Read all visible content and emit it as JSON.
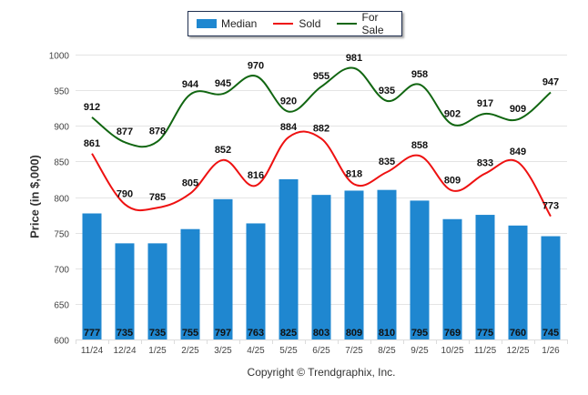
{
  "chart_data": {
    "type": "bar",
    "title": "",
    "xlabel": "",
    "ylabel": "Price (in $,000)",
    "ylim": [
      600,
      1000
    ],
    "yticks": [
      600,
      650,
      700,
      750,
      800,
      850,
      900,
      950,
      1000
    ],
    "grid": true,
    "legend_position": "top-center",
    "categories": [
      "11/24",
      "12/24",
      "1/25",
      "2/25",
      "3/25",
      "4/25",
      "5/25",
      "6/25",
      "7/25",
      "8/25",
      "9/25",
      "10/25",
      "11/25",
      "12/25",
      "1/26"
    ],
    "series": [
      {
        "name": "Median",
        "type": "bar",
        "color": "#1f87d0",
        "values": [
          777,
          735,
          735,
          755,
          797,
          763,
          825,
          803,
          809,
          810,
          795,
          769,
          775,
          760,
          745
        ]
      },
      {
        "name": "Sold",
        "type": "line",
        "color": "#ee1111",
        "values": [
          861,
          790,
          785,
          805,
          852,
          816,
          884,
          882,
          818,
          835,
          858,
          809,
          833,
          849,
          773
        ]
      },
      {
        "name": "For Sale",
        "type": "line",
        "color": "#116611",
        "values": [
          912,
          877,
          878,
          944,
          945,
          970,
          920,
          955,
          981,
          935,
          958,
          902,
          917,
          909,
          947
        ]
      }
    ],
    "annotation": "Copyright © Trendgraphix, Inc."
  },
  "legend": {
    "median": "Median",
    "sold": "Sold",
    "for_sale": "For Sale"
  },
  "copyright": "Copyright © Trendgraphix, Inc."
}
